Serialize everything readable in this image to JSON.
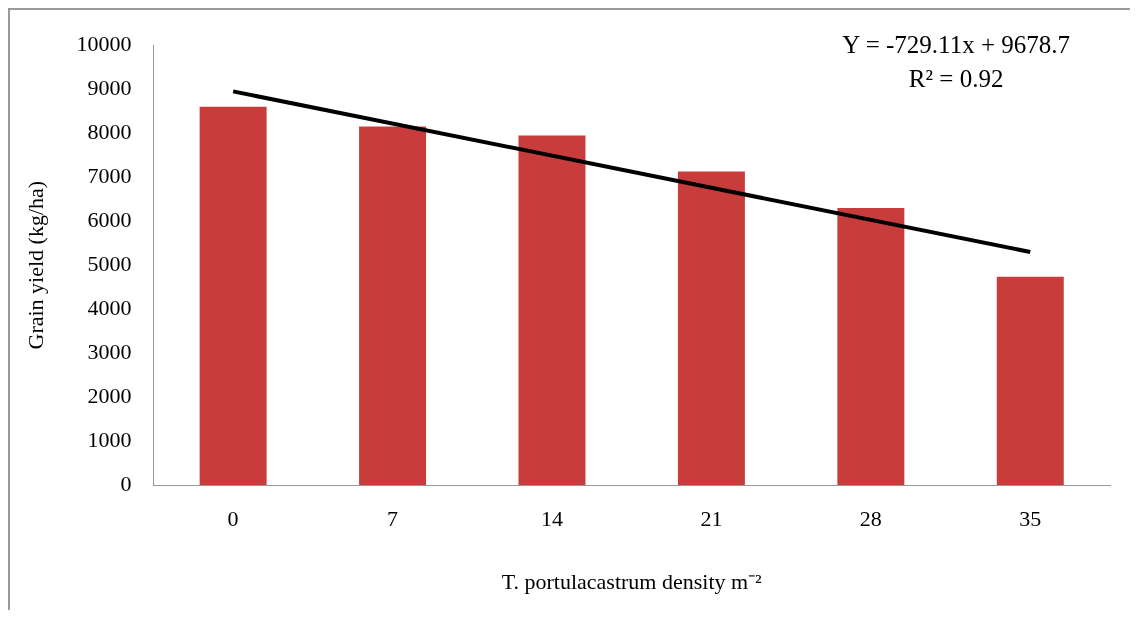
{
  "chart_data": {
    "type": "bar",
    "xlabel": "T. portulacastrum density m⁻²",
    "ylabel": "Grain yield (kg/ha)",
    "categories": [
      "0",
      "7",
      "14",
      "21",
      "28",
      "35"
    ],
    "series": [
      {
        "color": "#c93c3c",
        "values": [
          8600,
          8150,
          7950,
          7130,
          6300,
          4740
        ]
      },
      {
        "type": "line",
        "color": "#000000",
        "x": [
          "0",
          "35"
        ],
        "values": [
          8950,
          5300
        ]
      }
    ],
    "ylim": [
      0,
      10000
    ],
    "yticks": [
      0,
      1000,
      2000,
      3000,
      4000,
      5000,
      6000,
      7000,
      8000,
      9000,
      10000
    ],
    "grid": false,
    "legend": false,
    "annotations": [
      "Y = -729.11x + 9678.7",
      "R² = 0.92"
    ]
  }
}
